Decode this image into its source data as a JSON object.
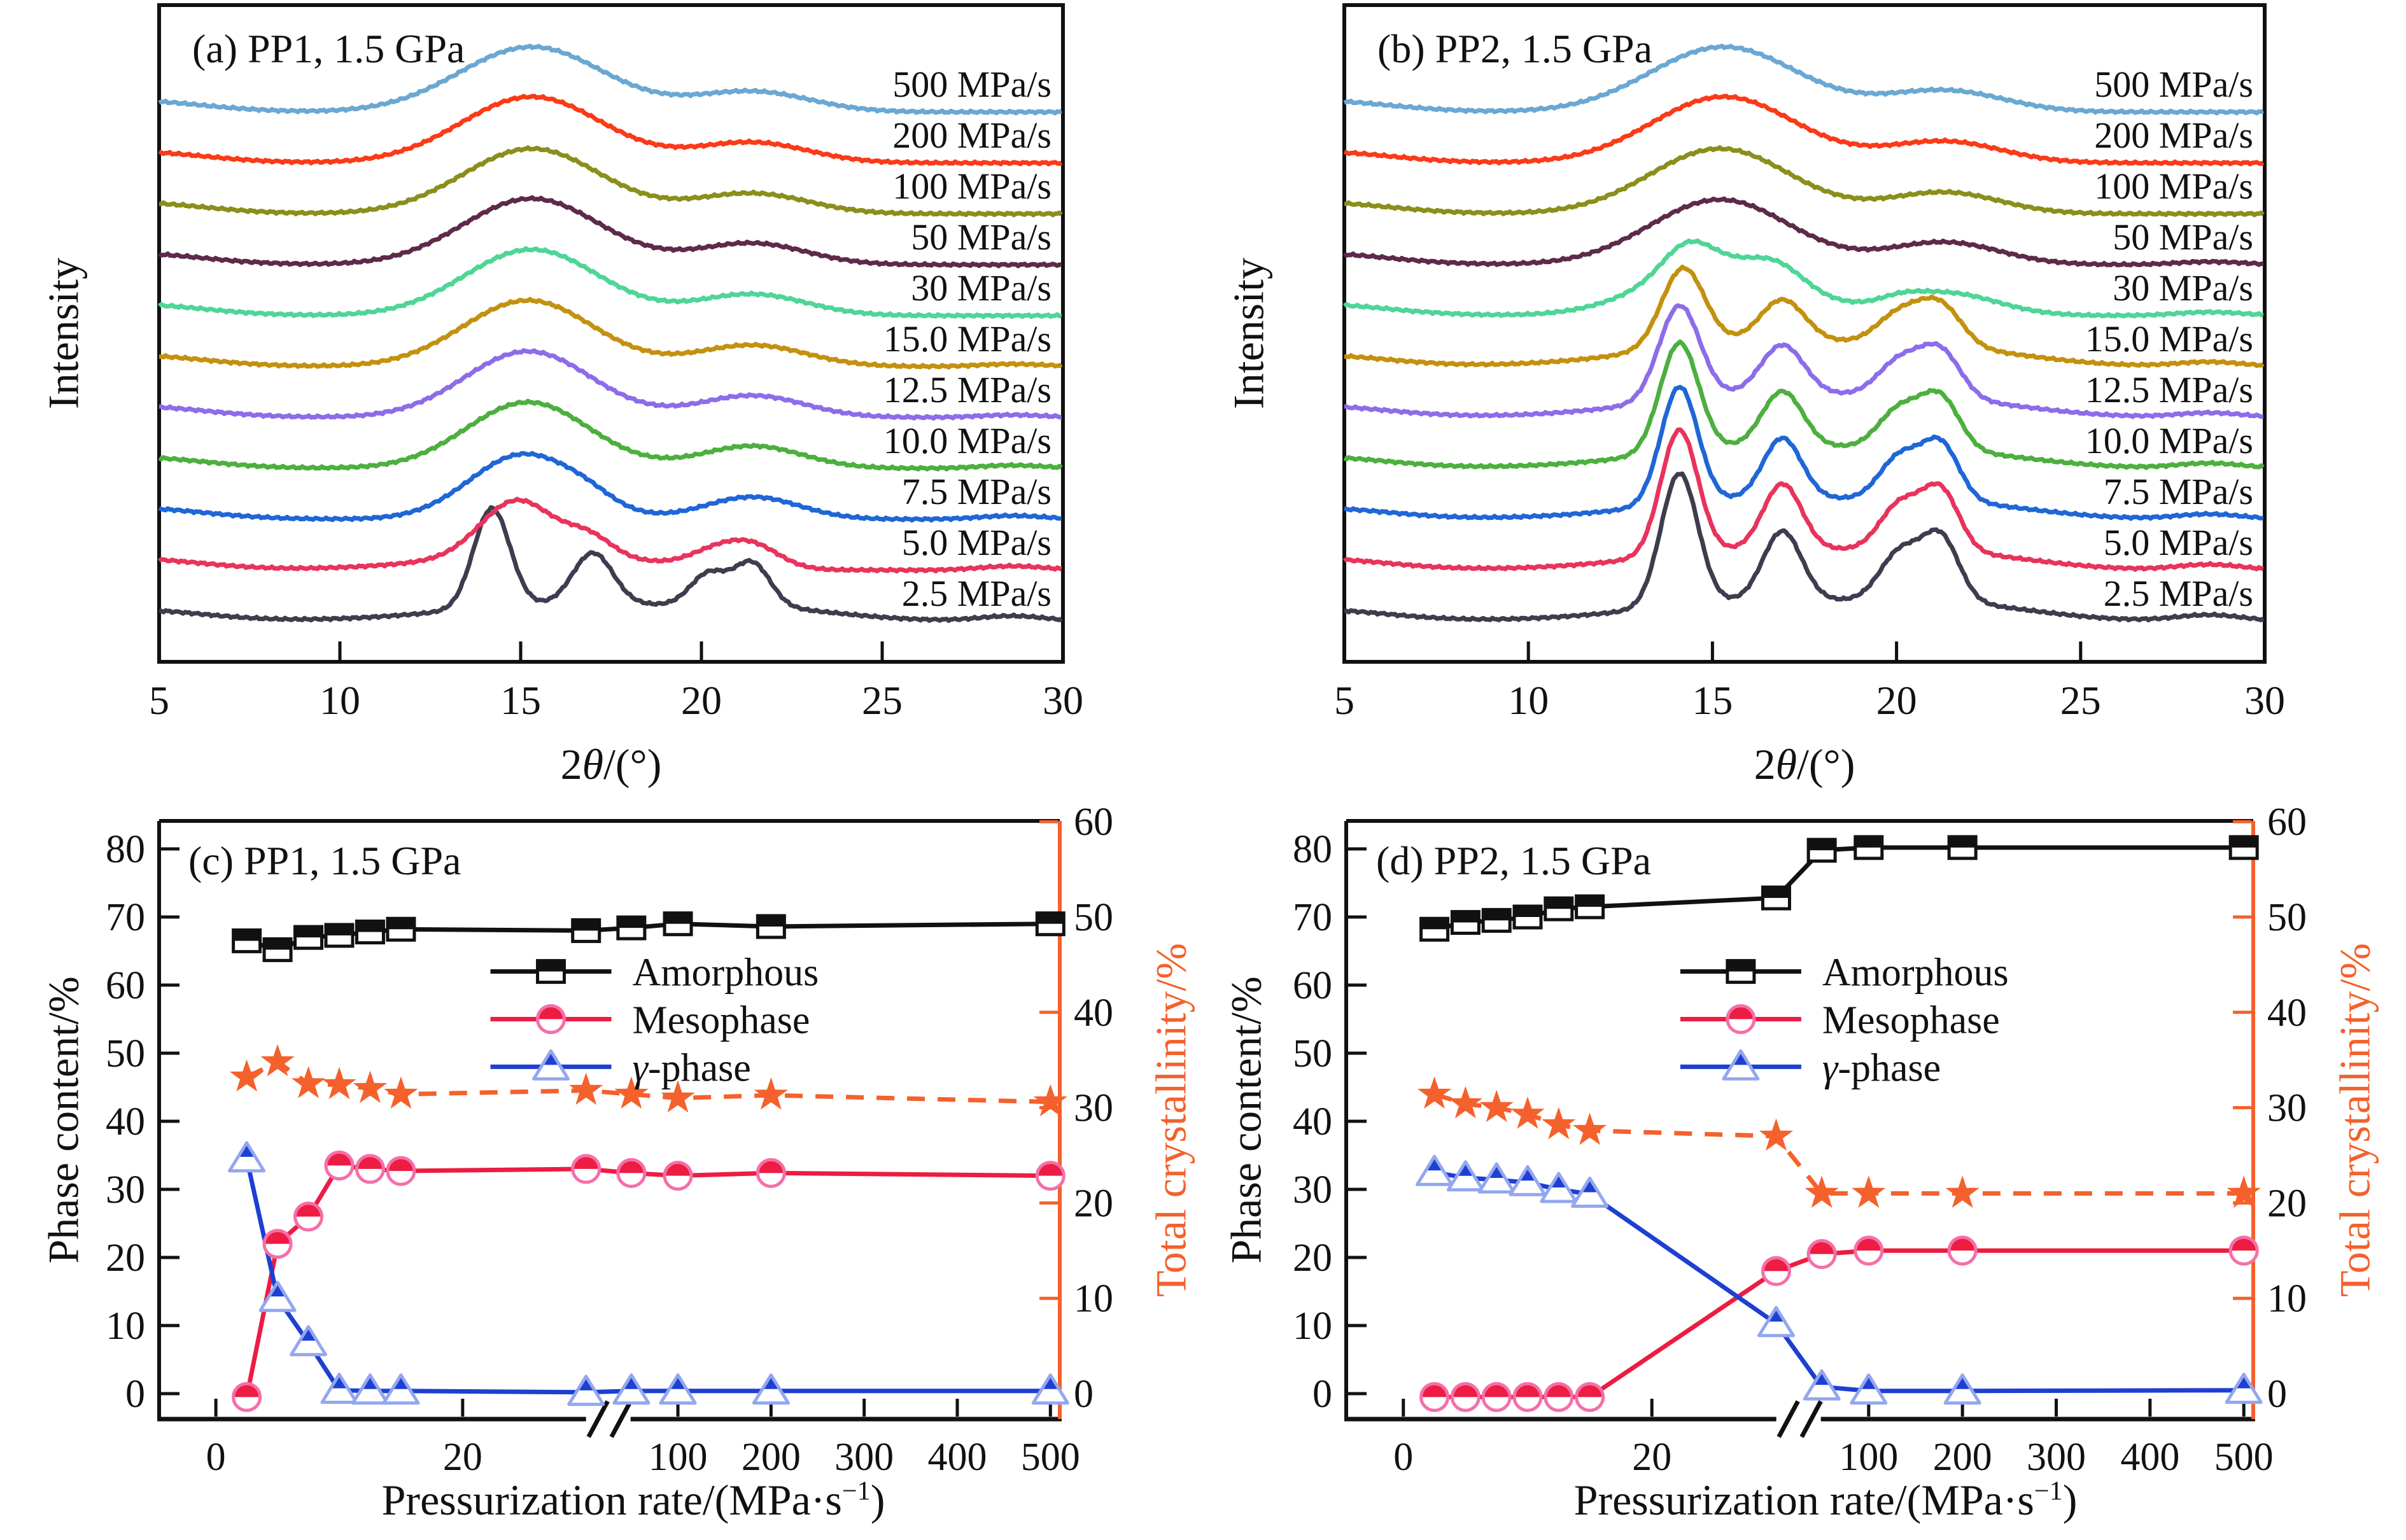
{
  "figure_background": "#ffffff",
  "accent_orange": "#f4612c",
  "chart_data": [
    {
      "id": "a",
      "type": "line",
      "title": "(a) PP1, 1.5 GPa",
      "xlabel": {
        "pre": "2",
        "italic": "θ",
        "post": "/(°)"
      },
      "ylabel": "Intensity",
      "xlim": [
        5,
        30
      ],
      "x_ticks": [
        5,
        10,
        15,
        20,
        25,
        30
      ],
      "description": "Stacked WAXD intensity curves of PP1 at 1.5 GPa, offset vertically, one per pressurization rate; peaks given as [center 2theta, width, relative amplitude]",
      "curves": [
        {
          "label": "2.5 MPa/s",
          "color": "#3d3d4f",
          "offset": 0,
          "peaks": [
            [
              14.2,
              0.5,
              1.95
            ],
            [
              17.0,
              0.55,
              1.0
            ],
            [
              20.2,
              0.5,
              0.62
            ],
            [
              21.4,
              0.5,
              0.85
            ],
            [
              16.3,
              3.2,
              0.33
            ],
            [
              21.8,
              2.2,
              0.2
            ],
            [
              28.6,
              0.9,
              0.1
            ]
          ]
        },
        {
          "label": "5.0 MPa/s",
          "color": "#e8335c",
          "offset": 1,
          "peaks": [
            [
              14.9,
              1.0,
              1.1
            ],
            [
              16.9,
              0.65,
              0.38
            ],
            [
              20.3,
              0.7,
              0.25
            ],
            [
              21.4,
              0.75,
              0.45
            ],
            [
              15.5,
              3.0,
              0.28
            ],
            [
              28.6,
              0.9,
              0.08
            ]
          ]
        },
        {
          "label": "7.5 MPa/s",
          "color": "#1f66d6",
          "offset": 2,
          "peaks": [
            [
              15.1,
              1.5,
              1.28
            ],
            [
              16.9,
              0.7,
              0.14
            ],
            [
              21.4,
              1.3,
              0.44
            ],
            [
              28.6,
              0.9,
              0.07
            ]
          ]
        },
        {
          "label": "10.0 MPa/s",
          "color": "#4caf3e",
          "offset": 3,
          "peaks": [
            [
              15.2,
              1.7,
              1.3
            ],
            [
              21.4,
              1.4,
              0.44
            ],
            [
              28.6,
              0.9,
              0.06
            ]
          ]
        },
        {
          "label": "12.5 MPa/s",
          "color": "#8d6cea",
          "offset": 4,
          "peaks": [
            [
              15.2,
              1.75,
              1.3
            ],
            [
              21.4,
              1.45,
              0.43
            ],
            [
              28.6,
              0.9,
              0.05
            ]
          ]
        },
        {
          "label": "15.0 MPa/s",
          "color": "#c3910f",
          "offset": 5,
          "peaks": [
            [
              15.2,
              1.8,
              1.3
            ],
            [
              21.4,
              1.5,
              0.42
            ],
            [
              28.6,
              0.9,
              0.05
            ]
          ]
        },
        {
          "label": "30 MPa/s",
          "color": "#4fd596",
          "offset": 6,
          "peaks": [
            [
              15.3,
              1.85,
              1.3
            ],
            [
              21.4,
              1.5,
              0.42
            ]
          ]
        },
        {
          "label": "50 MPa/s",
          "color": "#5d2a4a",
          "offset": 7,
          "peaks": [
            [
              15.3,
              1.9,
              1.3
            ],
            [
              21.4,
              1.5,
              0.42
            ]
          ]
        },
        {
          "label": "100 MPa/s",
          "color": "#8c8e1b",
          "offset": 8,
          "peaks": [
            [
              15.3,
              1.9,
              1.28
            ],
            [
              21.4,
              1.55,
              0.4
            ]
          ]
        },
        {
          "label": "200 MPa/s",
          "color": "#fb3a18",
          "offset": 9,
          "peaks": [
            [
              15.3,
              1.95,
              1.3
            ],
            [
              21.4,
              1.55,
              0.4
            ]
          ]
        },
        {
          "label": "500 MPa/s",
          "color": "#6ba7d3",
          "offset": 10,
          "peaks": [
            [
              15.3,
              2.0,
              1.28
            ],
            [
              21.4,
              1.6,
              0.4
            ]
          ]
        }
      ]
    },
    {
      "id": "b",
      "type": "line",
      "title": "(b) PP2, 1.5 GPa",
      "xlabel": {
        "pre": "2",
        "italic": "θ",
        "post": "/(°)"
      },
      "ylabel": "Intensity",
      "xlim": [
        5,
        30
      ],
      "x_ticks": [
        5,
        10,
        15,
        20,
        25,
        30
      ],
      "description": "Stacked WAXD intensity curves of PP2 at 1.5 GPa; low rates keep sharp gamma-phase peaks up to higher pressurization rates",
      "curves": [
        {
          "label": "2.5 MPa/s",
          "color": "#3d3d4f",
          "offset": 0,
          "peaks": [
            [
              14.1,
              0.5,
              2.6
            ],
            [
              16.9,
              0.52,
              1.35
            ],
            [
              20.1,
              0.55,
              0.95
            ],
            [
              21.2,
              0.5,
              1.25
            ],
            [
              16.5,
              3.2,
              0.4
            ],
            [
              21.8,
              2.2,
              0.25
            ],
            [
              28.5,
              0.9,
              0.12
            ]
          ]
        },
        {
          "label": "5.0 MPa/s",
          "color": "#e8335c",
          "offset": 1,
          "peaks": [
            [
              14.1,
              0.5,
              2.45
            ],
            [
              16.9,
              0.52,
              1.28
            ],
            [
              20.1,
              0.55,
              0.9
            ],
            [
              21.2,
              0.5,
              1.18
            ],
            [
              16.5,
              3.2,
              0.4
            ],
            [
              21.8,
              2.2,
              0.24
            ],
            [
              28.5,
              0.9,
              0.11
            ]
          ]
        },
        {
          "label": "7.5 MPa/s",
          "color": "#1f66d6",
          "offset": 2,
          "peaks": [
            [
              14.1,
              0.5,
              2.3
            ],
            [
              16.9,
              0.52,
              1.18
            ],
            [
              20.1,
              0.55,
              0.85
            ],
            [
              21.2,
              0.5,
              1.1
            ],
            [
              16.5,
              3.2,
              0.4
            ],
            [
              21.8,
              2.2,
              0.23
            ],
            [
              28.5,
              0.9,
              0.1
            ]
          ]
        },
        {
          "label": "10.0 MPa/s",
          "color": "#4caf3e",
          "offset": 3,
          "peaks": [
            [
              14.1,
              0.52,
              2.15
            ],
            [
              16.9,
              0.55,
              1.08
            ],
            [
              20.1,
              0.58,
              0.78
            ],
            [
              21.2,
              0.52,
              1.0
            ],
            [
              16.5,
              3.2,
              0.42
            ],
            [
              21.8,
              2.2,
              0.22
            ],
            [
              28.5,
              0.9,
              0.1
            ]
          ]
        },
        {
          "label": "12.5 MPa/s",
          "color": "#8d6cea",
          "offset": 4,
          "peaks": [
            [
              14.1,
              0.55,
              1.85
            ],
            [
              16.9,
              0.58,
              0.95
            ],
            [
              20.1,
              0.6,
              0.7
            ],
            [
              21.2,
              0.55,
              0.9
            ],
            [
              16.5,
              3.2,
              0.46
            ],
            [
              21.8,
              2.2,
              0.22
            ],
            [
              28.5,
              0.9,
              0.09
            ]
          ]
        },
        {
          "label": "15.0 MPa/s",
          "color": "#c3910f",
          "offset": 5,
          "peaks": [
            [
              14.2,
              0.58,
              1.55
            ],
            [
              16.9,
              0.6,
              0.8
            ],
            [
              20.1,
              0.62,
              0.6
            ],
            [
              21.2,
              0.58,
              0.78
            ],
            [
              16.5,
              3.2,
              0.5
            ],
            [
              21.8,
              2.2,
              0.23
            ],
            [
              28.5,
              0.9,
              0.09
            ]
          ]
        },
        {
          "label": "30 MPa/s",
          "color": "#4fd596",
          "offset": 6,
          "peaks": [
            [
              15.2,
              1.9,
              1.05
            ],
            [
              14.3,
              0.65,
              0.5
            ],
            [
              16.8,
              0.7,
              0.32
            ],
            [
              21.3,
              1.4,
              0.45
            ],
            [
              20.1,
              0.55,
              0.1
            ],
            [
              28.5,
              0.9,
              0.07
            ]
          ]
        },
        {
          "label": "50 MPa/s",
          "color": "#5d2a4a",
          "offset": 7,
          "peaks": [
            [
              15.2,
              1.9,
              1.28
            ],
            [
              21.3,
              1.5,
              0.44
            ],
            [
              28.5,
              0.9,
              0.06
            ]
          ]
        },
        {
          "label": "100 MPa/s",
          "color": "#8c8e1b",
          "offset": 8,
          "peaks": [
            [
              15.2,
              1.9,
              1.28
            ],
            [
              21.3,
              1.5,
              0.42
            ]
          ]
        },
        {
          "label": "200 MPa/s",
          "color": "#fb3a18",
          "offset": 9,
          "peaks": [
            [
              15.3,
              1.95,
              1.3
            ],
            [
              21.3,
              1.55,
              0.42
            ]
          ]
        },
        {
          "label": "500 MPa/s",
          "color": "#6ba7d3",
          "offset": 10,
          "peaks": [
            [
              15.3,
              2.0,
              1.28
            ],
            [
              21.3,
              1.6,
              0.42
            ]
          ]
        }
      ]
    },
    {
      "id": "c",
      "type": "scatter",
      "title": "(c) PP1, 1.5 GPa",
      "xlabel": {
        "pre": "Pressurization rate/(MPa·s",
        "sup": "−1",
        "post": ")"
      },
      "ylabel_left": "Phase content/%",
      "ylabel_right": "Total crystallinity/%",
      "x_ticks": [
        0,
        20,
        100,
        200,
        300,
        400,
        500
      ],
      "x_axis_break_between": [
        30,
        50
      ],
      "yl_ticks": [
        0,
        10,
        20,
        30,
        40,
        50,
        60,
        70,
        80
      ],
      "yr_ticks": [
        0,
        10,
        20,
        30,
        40,
        50,
        60
      ],
      "ylim_left": [
        0,
        84
      ],
      "ylim_right": [
        0,
        60
      ],
      "x": [
        2.5,
        5,
        7.5,
        10,
        12.5,
        15,
        30,
        50,
        100,
        200,
        500
      ],
      "series": [
        {
          "name": "Amorphous",
          "axis": "left",
          "marker": "halfsquare",
          "color": "#111111",
          "outline": "#111111",
          "dashed": false,
          "values": [
            66.5,
            65.2,
            67.0,
            67.3,
            67.8,
            68.2,
            68.0,
            68.4,
            69.0,
            68.6,
            69.0
          ]
        },
        {
          "name": "Mesophase",
          "axis": "left",
          "marker": "halfcircle",
          "color": "#ec1c42",
          "outline": "#f56fa8",
          "dashed": false,
          "values": [
            -0.5,
            22.0,
            26.0,
            33.5,
            33.0,
            32.7,
            33.0,
            32.4,
            32.0,
            32.4,
            32.0
          ]
        },
        {
          "name": "γ-phase",
          "axis": "left",
          "marker": "halftriangle",
          "color": "#1d3fd2",
          "outline": "#93a6ef",
          "dashed": false,
          "values": [
            34.5,
            14.0,
            7.5,
            0.5,
            0.4,
            0.4,
            0.2,
            0.4,
            0.4,
            0.4,
            0.4
          ]
        },
        {
          "name": "Total crystallinity",
          "axis": "right",
          "marker": "star",
          "color": "#f4612c",
          "outline": "#f4612c",
          "dashed": true,
          "values": [
            33.2,
            34.8,
            32.5,
            32.4,
            32.0,
            31.4,
            31.8,
            31.4,
            31.0,
            31.3,
            30.6
          ]
        }
      ],
      "legend": [
        "Amorphous",
        "Mesophase",
        "γ-phase"
      ]
    },
    {
      "id": "d",
      "type": "scatter",
      "title": "(d) PP2, 1.5 GPa",
      "xlabel": {
        "pre": "Pressurization rate/(MPa·s",
        "sup": "−1",
        "post": ")"
      },
      "ylabel_left": "Phase content/%",
      "ylabel_right": "Total crystallinity/%",
      "x_ticks": [
        0,
        20,
        100,
        200,
        300,
        400,
        500
      ],
      "x_axis_break_between": [
        30,
        50
      ],
      "yl_ticks": [
        0,
        10,
        20,
        30,
        40,
        50,
        60,
        70,
        80
      ],
      "yr_ticks": [
        0,
        10,
        20,
        30,
        40,
        50,
        60
      ],
      "ylim_left": [
        0,
        84
      ],
      "ylim_right": [
        0,
        60
      ],
      "x": [
        2.5,
        5,
        7.5,
        10,
        12.5,
        15,
        30,
        50,
        100,
        200,
        500
      ],
      "series": [
        {
          "name": "Amorphous",
          "axis": "left",
          "marker": "halfsquare",
          "color": "#111111",
          "outline": "#111111",
          "dashed": false,
          "values": [
            68.2,
            69.2,
            69.5,
            70.0,
            71.2,
            71.5,
            72.8,
            79.8,
            80.2,
            80.2,
            80.2
          ]
        },
        {
          "name": "Mesophase",
          "axis": "left",
          "marker": "halfcircle",
          "color": "#ec1c42",
          "outline": "#f56fa8",
          "dashed": false,
          "values": [
            -0.5,
            -0.5,
            -0.5,
            -0.5,
            -0.5,
            -0.5,
            18.0,
            20.5,
            21.0,
            21.0,
            21.0
          ]
        },
        {
          "name": "γ-phase",
          "axis": "left",
          "marker": "halftriangle",
          "color": "#1d3fd2",
          "outline": "#93a6ef",
          "dashed": false,
          "values": [
            32.5,
            31.7,
            31.4,
            31.0,
            30.0,
            29.3,
            10.3,
            1.0,
            0.4,
            0.4,
            0.5
          ]
        },
        {
          "name": "Total crystallinity",
          "axis": "right",
          "marker": "star",
          "color": "#f4612c",
          "outline": "#f4612c",
          "dashed": true,
          "values": [
            31.4,
            30.4,
            30.0,
            29.3,
            28.2,
            27.6,
            27.0,
            21.0,
            21.0,
            21.0,
            21.0
          ]
        }
      ],
      "legend": [
        "Amorphous",
        "Mesophase",
        "γ-phase"
      ]
    }
  ]
}
